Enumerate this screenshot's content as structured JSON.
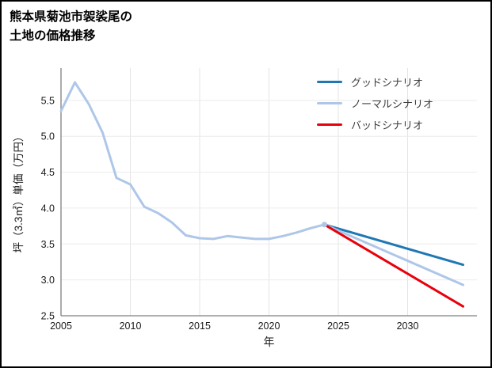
{
  "page": {
    "title_line1": "熊本県菊池市袈裟尾の",
    "title_line2": "土地の価格推移"
  },
  "chart_data": {
    "type": "line",
    "title": "熊本県菊池市袈裟尾の土地の価格推移",
    "xlabel": "年",
    "ylabel": "坪（3.3㎡）単価（万円）",
    "xlim": [
      2005,
      2035
    ],
    "ylim": [
      2.5,
      5.95
    ],
    "xticks": [
      2005,
      2010,
      2015,
      2020,
      2025,
      2030
    ],
    "yticks": [
      2.5,
      3.0,
      3.5,
      4.0,
      4.5,
      5.0,
      5.5
    ],
    "grid": true,
    "legend_position": "top-right",
    "series": [
      {
        "name": "historical",
        "color": "#aec7e8",
        "width": 3,
        "x": [
          2005,
          2006,
          2007,
          2008,
          2009,
          2010,
          2011,
          2012,
          2013,
          2014,
          2015,
          2016,
          2017,
          2018,
          2019,
          2020,
          2021,
          2022,
          2023,
          2024
        ],
        "y": [
          5.35,
          5.75,
          5.45,
          5.05,
          4.42,
          4.33,
          4.02,
          3.93,
          3.8,
          3.62,
          3.58,
          3.57,
          3.61,
          3.59,
          3.57,
          3.57,
          3.61,
          3.66,
          3.72,
          3.77
        ]
      },
      {
        "name": "グッドシナリオ",
        "color": "#1f77b4",
        "width": 3,
        "x": [
          2024,
          2034
        ],
        "y": [
          3.77,
          3.21
        ]
      },
      {
        "name": "ノーマルシナリオ",
        "color": "#aec7e8",
        "width": 3,
        "x": [
          2024,
          2034
        ],
        "y": [
          3.77,
          2.93
        ]
      },
      {
        "name": "バッドシナリオ",
        "color": "#e8000b",
        "width": 3,
        "x": [
          2024,
          2034
        ],
        "y": [
          3.77,
          2.63
        ]
      }
    ],
    "marker": {
      "x": 2024,
      "y": 3.77,
      "color": "#aec7e8",
      "r": 3.5
    },
    "legend": [
      {
        "label": "グッドシナリオ",
        "color": "#1f77b4"
      },
      {
        "label": "ノーマルシナリオ",
        "color": "#aec7e8"
      },
      {
        "label": "バッドシナリオ",
        "color": "#e8000b"
      }
    ]
  }
}
